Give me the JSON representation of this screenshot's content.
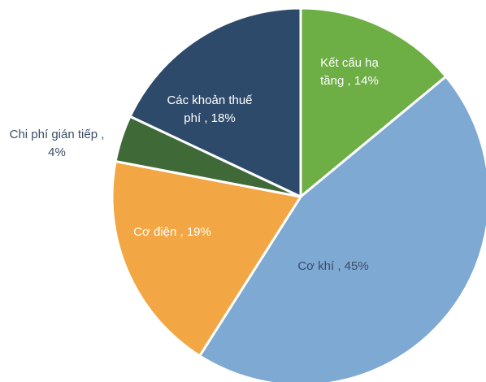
{
  "chart_data": {
    "type": "pie",
    "start_angle_deg": 0,
    "direction": "clockwise",
    "slices": [
      {
        "name": "Kết cấu hạ tầng",
        "value": 14,
        "label_lines": [
          "Kết cấu hạ",
          "tầng , 14%"
        ],
        "color": "#6DAE45",
        "label_color": "#ffffff"
      },
      {
        "name": "Cơ khí",
        "value": 45,
        "label_lines": [
          "Cơ khí , 45%"
        ],
        "color": "#7EA9D3",
        "label_color": "#3b4d66"
      },
      {
        "name": "Cơ điện",
        "value": 19,
        "label_lines": [
          "Cơ điện , 19%"
        ],
        "color": "#F2A744",
        "label_color": "#ffffff"
      },
      {
        "name": "Chi phí gián tiếp",
        "value": 4,
        "label_lines": [
          "Chi phí gián tiếp ,",
          "4%"
        ],
        "color": "#3F6A37",
        "label_color": "#3b4d66"
      },
      {
        "name": "Các khoản thuế phí",
        "value": 18,
        "label_lines": [
          "Các khoản thuế",
          "phí , 18%"
        ],
        "color": "#2E4A6B",
        "label_color": "#ffffff"
      }
    ]
  }
}
